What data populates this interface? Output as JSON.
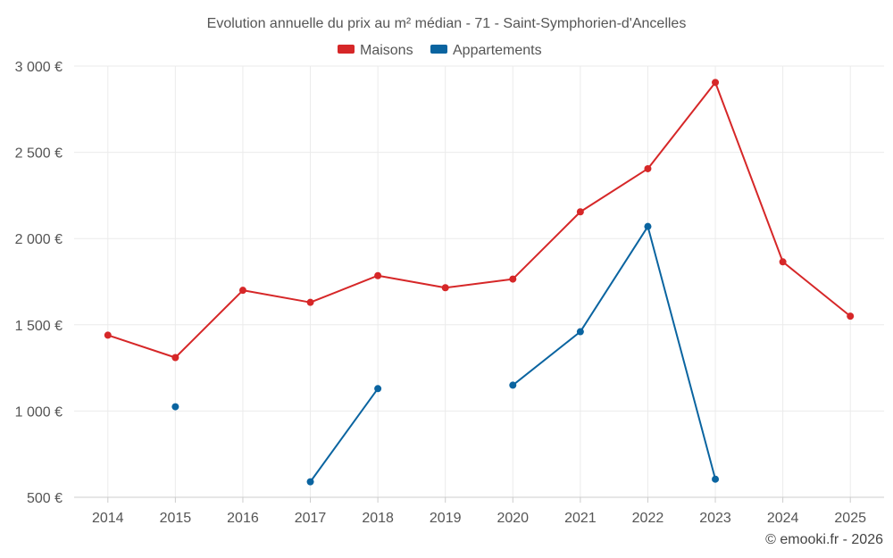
{
  "chart_data": {
    "type": "line",
    "title": "Evolution annuelle du prix au m² médian - 71 - Saint-Symphorien-d'Ancelles",
    "xlabel": "",
    "ylabel": "",
    "categories": [
      "2014",
      "2015",
      "2016",
      "2017",
      "2018",
      "2019",
      "2020",
      "2021",
      "2022",
      "2023",
      "2024",
      "2025"
    ],
    "ylim": [
      500,
      3000
    ],
    "yticks": [
      500,
      1000,
      1500,
      2000,
      2500,
      3000
    ],
    "ytick_labels": [
      "500 €",
      "1 000 €",
      "1 500 €",
      "2 000 €",
      "2 500 €",
      "3 000 €"
    ],
    "grid": true,
    "legend_position": "top-center",
    "series": [
      {
        "name": "Maisons",
        "color": "#d62728",
        "values": [
          1440,
          1310,
          1700,
          1630,
          1785,
          1715,
          1765,
          2155,
          2405,
          2905,
          1865,
          1550
        ]
      },
      {
        "name": "Appartements",
        "color": "#0a64a0",
        "values": [
          null,
          1025,
          null,
          590,
          1130,
          null,
          1150,
          1460,
          2070,
          605,
          null,
          null
        ]
      }
    ]
  },
  "footer": "© emooki.fr - 2026"
}
